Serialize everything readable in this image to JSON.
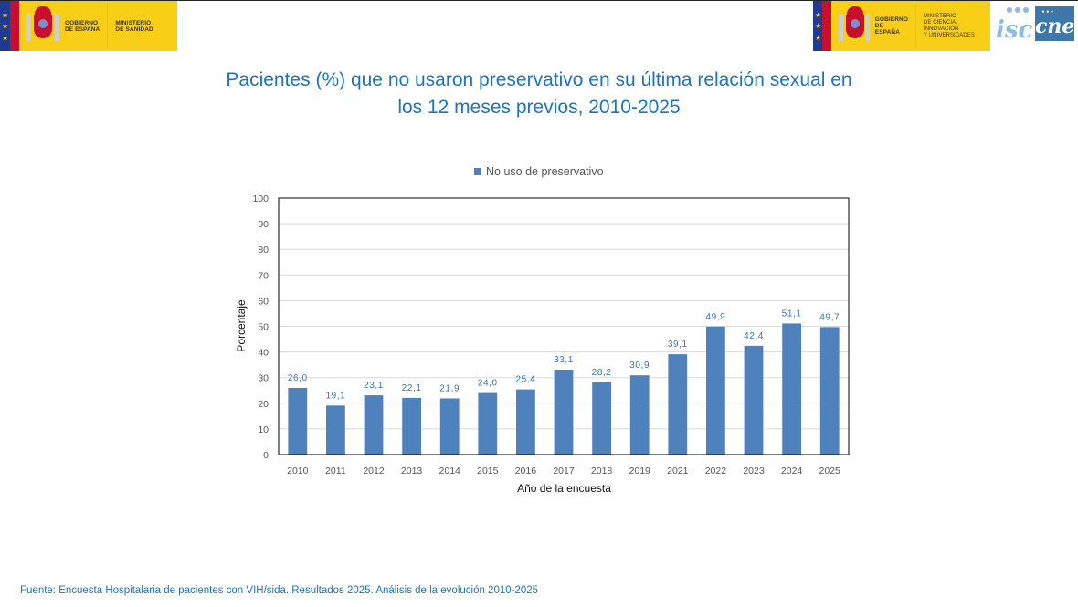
{
  "header": {
    "logo_left": {
      "line1": "GOBIERNO",
      "line2": "DE ESPAÑA",
      "ministry_line1": "MINISTERIO",
      "ministry_line2": "DE SANIDAD"
    },
    "logo_right": {
      "line1": "GOBIERNO",
      "line2": "DE ESPAÑA",
      "ministry_line1": "MINISTERIO",
      "ministry_line2": "DE CIENCIA, INNOVACIÓN",
      "ministry_line3": "Y UNIVERSIDADES"
    },
    "isc_logo_text": "isc",
    "cne_logo_text": "cne"
  },
  "colors": {
    "title": "#1b75bb",
    "bar": "#4f81bd",
    "data_label": "#3a72b5",
    "logo_yellow": "#f8cf16",
    "cne_blue": "#3d78a8"
  },
  "chart_data": {
    "type": "bar",
    "title": "Pacientes (%) que no usaron preservativo en su última relación sexual en los 12 meses previos, 2010-2025",
    "title_line1": "Pacientes (%) que no usaron preservativo en su última relación sexual en",
    "title_line2": "los 12 meses previos, 2010-2025",
    "xlabel": "Año de la encuesta",
    "ylabel": "Porcentaje",
    "ylim": [
      0,
      100
    ],
    "yticks": [
      0,
      10,
      20,
      30,
      40,
      50,
      60,
      70,
      80,
      90,
      100
    ],
    "grid": true,
    "legend_position": "top-center",
    "categories": [
      "2010",
      "2011",
      "2012",
      "2013",
      "2014",
      "2015",
      "2016",
      "2017",
      "2018",
      "2019",
      "2021",
      "2022",
      "2023",
      "2024",
      "2025"
    ],
    "series": [
      {
        "name": "No uso de preservativo",
        "values": [
          26.0,
          19.1,
          23.1,
          22.1,
          21.9,
          24.0,
          25.4,
          33.1,
          28.2,
          30.9,
          39.1,
          49.9,
          42.4,
          51.1,
          49.7
        ],
        "labels": [
          "26,0",
          "19,1",
          "23,1",
          "22,1",
          "21,9",
          "24,0",
          "25,4",
          "33,1",
          "28,2",
          "30,9",
          "39,1",
          "49,9",
          "42,4",
          "51,1",
          "49,7"
        ]
      }
    ]
  },
  "footer": {
    "source": "Fuente: Encuesta Hospitalaria de pacientes con VIH/sida. Resultados 2025. Análisis de la evolución 2010-2025"
  }
}
